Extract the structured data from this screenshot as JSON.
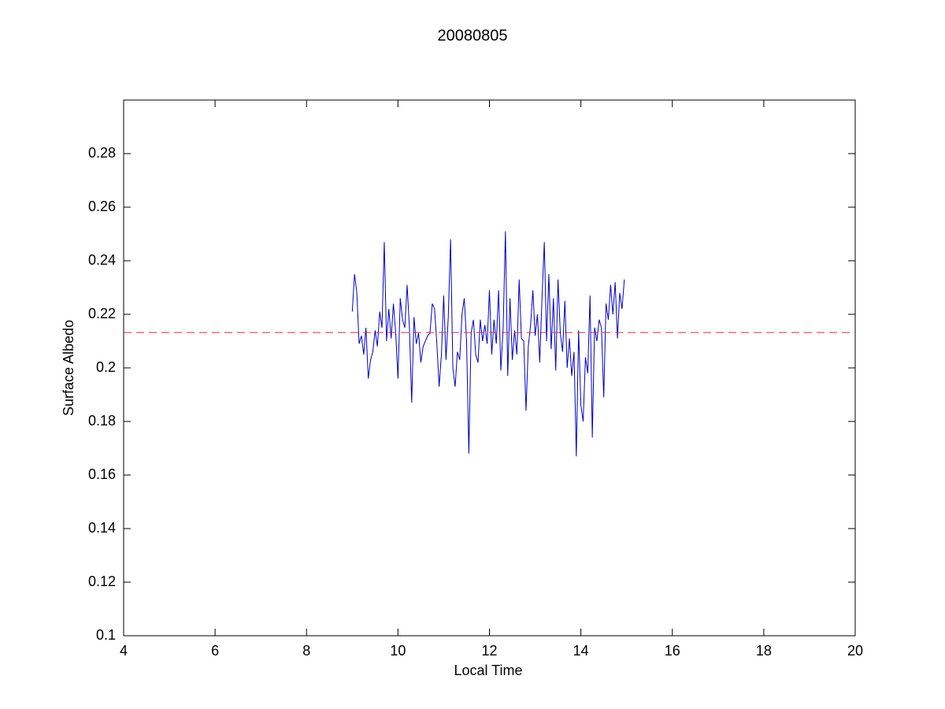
{
  "chart_data": {
    "type": "line",
    "title": "20080805",
    "xlabel": "Local Time",
    "ylabel": "Surface Albedo",
    "xlim": [
      4,
      20
    ],
    "xticks": [
      4,
      6,
      8,
      10,
      12,
      14,
      16,
      18,
      20
    ],
    "ylim": [
      0.1,
      0.3
    ],
    "yticks": [
      0.1,
      0.12,
      0.14,
      0.16,
      0.18,
      0.2,
      0.22,
      0.24,
      0.26,
      0.28
    ],
    "grid": false,
    "series": [
      {
        "color": "#0000cc",
        "dash": false,
        "x": [
          9,
          9.05,
          9.1,
          9.15,
          9.2,
          9.25,
          9.3,
          9.35,
          9.4,
          9.45,
          9.5,
          9.55,
          9.6,
          9.65,
          9.7,
          9.75,
          9.8,
          9.85,
          9.9,
          9.95,
          10,
          10.05,
          10.1,
          10.15,
          10.2,
          10.25,
          10.3,
          10.35,
          10.4,
          10.45,
          10.5,
          10.55,
          10.6,
          10.65,
          10.7,
          10.75,
          10.8,
          10.85,
          10.9,
          10.95,
          11,
          11.05,
          11.1,
          11.15,
          11.2,
          11.25,
          11.3,
          11.35,
          11.4,
          11.45,
          11.5,
          11.55,
          11.6,
          11.65,
          11.7,
          11.75,
          11.8,
          11.85,
          11.9,
          11.95,
          12,
          12.05,
          12.1,
          12.15,
          12.2,
          12.25,
          12.3,
          12.35,
          12.4,
          12.45,
          12.5,
          12.55,
          12.6,
          12.65,
          12.7,
          12.75,
          12.8,
          12.85,
          12.9,
          12.95,
          13,
          13.05,
          13.1,
          13.15,
          13.2,
          13.25,
          13.3,
          13.35,
          13.4,
          13.45,
          13.5,
          13.55,
          13.6,
          13.65,
          13.7,
          13.75,
          13.8,
          13.85,
          13.9,
          13.95,
          14,
          14.05,
          14.1,
          14.15,
          14.2,
          14.25,
          14.3,
          14.35,
          14.4,
          14.45,
          14.5,
          14.55,
          14.6,
          14.65,
          14.7,
          14.75,
          14.8,
          14.85,
          14.9,
          14.95
        ],
        "values": [
          0.221,
          0.235,
          0.228,
          0.209,
          0.212,
          0.205,
          0.215,
          0.196,
          0.203,
          0.206,
          0.214,
          0.208,
          0.221,
          0.215,
          0.247,
          0.21,
          0.222,
          0.211,
          0.224,
          0.213,
          0.196,
          0.226,
          0.218,
          0.215,
          0.231,
          0.215,
          0.187,
          0.219,
          0.209,
          0.213,
          0.202,
          0.208,
          0.21,
          0.212,
          0.213,
          0.224,
          0.222,
          0.209,
          0.193,
          0.205,
          0.227,
          0.203,
          0.219,
          0.248,
          0.2,
          0.193,
          0.206,
          0.203,
          0.22,
          0.226,
          0.21,
          0.168,
          0.213,
          0.218,
          0.205,
          0.202,
          0.218,
          0.21,
          0.216,
          0.209,
          0.229,
          0.205,
          0.218,
          0.209,
          0.229,
          0.199,
          0.215,
          0.251,
          0.197,
          0.226,
          0.203,
          0.214,
          0.205,
          0.233,
          0.211,
          0.21,
          0.184,
          0.208,
          0.216,
          0.229,
          0.212,
          0.22,
          0.202,
          0.226,
          0.247,
          0.21,
          0.235,
          0.207,
          0.226,
          0.199,
          0.233,
          0.213,
          0.206,
          0.225,
          0.2,
          0.211,
          0.197,
          0.206,
          0.167,
          0.214,
          0.186,
          0.18,
          0.204,
          0.198,
          0.227,
          0.174,
          0.215,
          0.21,
          0.218,
          0.215,
          0.189,
          0.224,
          0.218,
          0.231,
          0.22,
          0.232,
          0.211,
          0.228,
          0.222,
          0.233
        ]
      },
      {
        "color": "#cc3333",
        "dash": true,
        "x": [
          4,
          20
        ],
        "values": [
          0.2132,
          0.2132
        ]
      }
    ]
  }
}
